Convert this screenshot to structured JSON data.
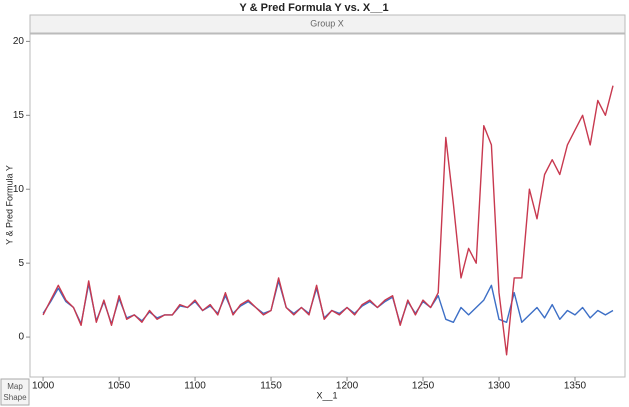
{
  "chart_data": {
    "type": "line",
    "title": "Y & Pred Formula Y vs. X__1",
    "group_header": "Group X",
    "xlabel": "X__1",
    "ylabel": "Y & Pred Formula Y",
    "x": [
      1000,
      1005,
      1010,
      1015,
      1020,
      1025,
      1030,
      1035,
      1040,
      1045,
      1050,
      1055,
      1060,
      1065,
      1070,
      1075,
      1080,
      1085,
      1090,
      1095,
      1100,
      1105,
      1110,
      1115,
      1120,
      1125,
      1130,
      1135,
      1140,
      1145,
      1150,
      1155,
      1160,
      1165,
      1170,
      1175,
      1180,
      1185,
      1190,
      1195,
      1200,
      1205,
      1210,
      1215,
      1220,
      1225,
      1230,
      1235,
      1240,
      1245,
      1250,
      1255,
      1260,
      1265,
      1270,
      1275,
      1280,
      1285,
      1290,
      1295,
      1300,
      1305,
      1310,
      1315,
      1320,
      1325,
      1330,
      1335,
      1340,
      1345,
      1350,
      1355,
      1360,
      1365,
      1370,
      1375
    ],
    "series": [
      {
        "color": "#3d6fc6",
        "values": [
          1.6,
          2.4,
          3.3,
          2.4,
          2.0,
          0.9,
          3.6,
          1.1,
          2.4,
          0.9,
          2.6,
          1.3,
          1.5,
          1.1,
          1.7,
          1.3,
          1.5,
          1.5,
          2.1,
          2.0,
          2.4,
          1.8,
          2.1,
          1.6,
          2.8,
          1.6,
          2.1,
          2.4,
          2.0,
          1.6,
          1.8,
          3.8,
          2.0,
          1.6,
          2.0,
          1.6,
          3.3,
          1.3,
          1.8,
          1.6,
          2.0,
          1.6,
          2.1,
          2.4,
          2.0,
          2.4,
          2.7,
          0.9,
          2.4,
          1.6,
          2.4,
          2.0,
          2.8,
          1.2,
          1.0,
          2.0,
          1.5,
          2.0,
          2.5,
          3.5,
          1.2,
          1.0,
          3.0,
          1.0,
          1.5,
          2.0,
          1.3,
          2.2,
          1.2,
          1.8,
          1.5,
          2.0,
          1.3,
          1.8,
          1.5,
          1.8
        ]
      },
      {
        "color": "#c8394f",
        "values": [
          1.5,
          2.5,
          3.5,
          2.5,
          2.0,
          0.8,
          3.8,
          1.0,
          2.5,
          0.8,
          2.8,
          1.2,
          1.5,
          1.0,
          1.8,
          1.2,
          1.5,
          1.5,
          2.2,
          2.0,
          2.5,
          1.8,
          2.2,
          1.5,
          3.0,
          1.5,
          2.2,
          2.5,
          2.0,
          1.5,
          1.8,
          4.0,
          2.0,
          1.5,
          2.0,
          1.5,
          3.5,
          1.2,
          1.8,
          1.5,
          2.0,
          1.5,
          2.2,
          2.5,
          2.0,
          2.5,
          2.8,
          0.8,
          2.5,
          1.5,
          2.5,
          2.0,
          3.0,
          13.5,
          9,
          4,
          6,
          5,
          14.3,
          13,
          3,
          -1.2,
          4,
          4,
          10,
          8,
          11,
          12,
          11,
          13,
          14,
          15,
          13,
          16,
          15,
          17
        ]
      }
    ],
    "xlim": [
      991.4,
      1382.9
    ],
    "ylim": [
      -2.7,
      20.5
    ],
    "xticks": [
      1000,
      1050,
      1100,
      1150,
      1200,
      1250,
      1300,
      1350
    ],
    "yticks": [
      0,
      5,
      10,
      15,
      20
    ],
    "grid": false
  },
  "controls": {
    "map_shape": "Map Shape"
  }
}
